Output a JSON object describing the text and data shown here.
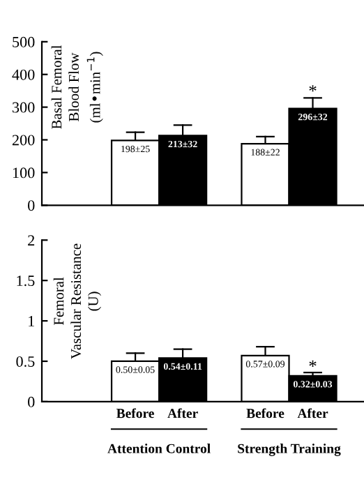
{
  "chart_data": [
    {
      "type": "bar",
      "ylabel": "Basal Femoral\nBlood Flow\n(ml•min$^{−1}$)",
      "categories": [
        null,
        null,
        null,
        null
      ],
      "values": [
        198,
        213,
        188,
        296
      ],
      "colors": [
        "#ffffff",
        "#000000",
        "#ffffff",
        "#000000"
      ],
      "errors": [
        [
          198,
          223
        ],
        [
          213,
          245
        ],
        [
          188,
          210
        ],
        [
          296,
          328
        ]
      ],
      "value_labels": [
        "198±25",
        "213±32",
        "188±22",
        "296±32"
      ],
      "ylim": [
        0,
        500
      ],
      "yticks": [
        0,
        100,
        200,
        300,
        400,
        500
      ],
      "grid": false,
      "tick_labels": "y",
      "annotations": [
        {
          "text": "*",
          "y": 345
        }
      ]
    },
    {
      "type": "bar",
      "ylabel": "Femoral\nVascular Resistance\n(U)",
      "categories": [
        "Before",
        "After",
        "Before",
        "After"
      ],
      "values": [
        0.5,
        0.54,
        0.57,
        0.32
      ],
      "colors": [
        "#ffffff",
        "#000000",
        "#ffffff",
        "#000000"
      ],
      "errors": [
        [
          0.5,
          0.6
        ],
        [
          0.54,
          0.65
        ],
        [
          0.57,
          0.68
        ],
        [
          0.32,
          0.36
        ]
      ],
      "value_labels": [
        "0.50±0.05",
        "0.54±0.11",
        "0.57±0.09",
        "0.32±0.03"
      ],
      "ylim": [
        0,
        2
      ],
      "yticks": [
        0,
        0.5,
        1,
        1.5,
        2
      ],
      "grid": false,
      "annotations": [
        {
          "text": "*",
          "y": 0.42
        },
        "Attention Control",
        "Strength Training"
      ]
    }
  ]
}
